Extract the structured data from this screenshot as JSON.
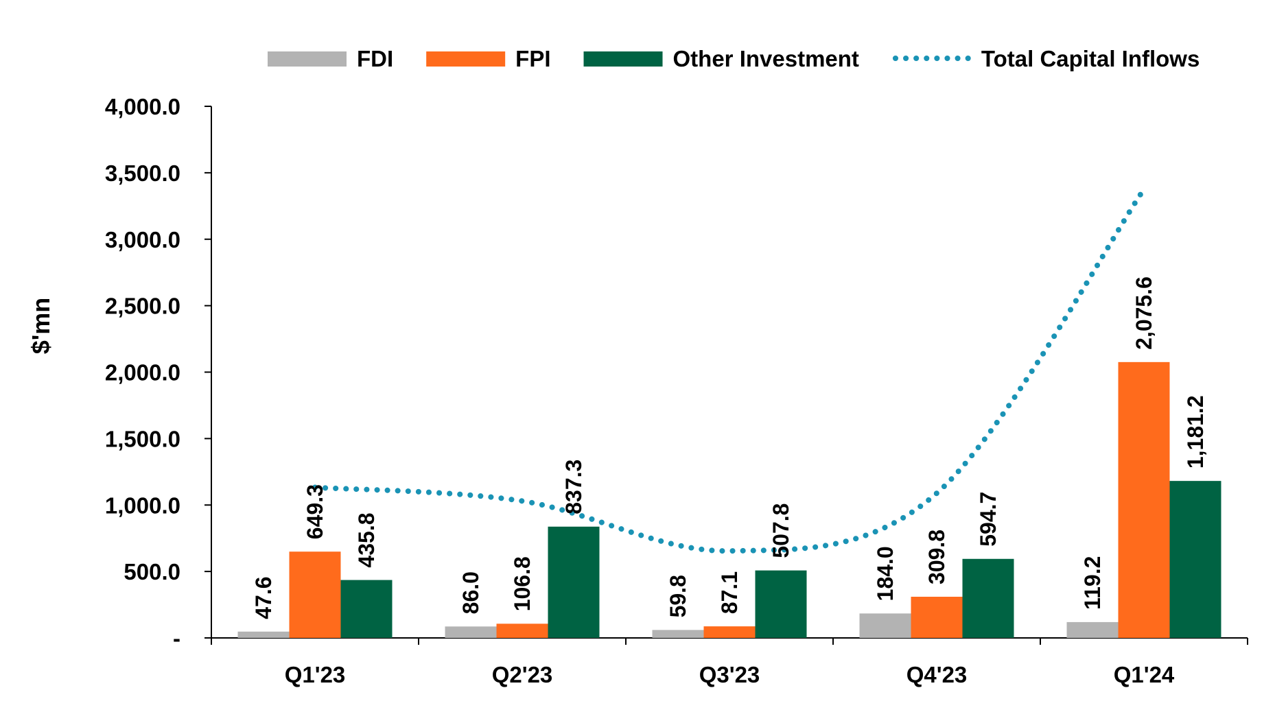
{
  "chart_data": {
    "type": "bar",
    "ylabel": "$'mn",
    "xlabel": "",
    "title": "",
    "categories": [
      "Q1'23",
      "Q2'23",
      "Q3'23",
      "Q4'23",
      "Q1'24"
    ],
    "series": [
      {
        "name": "FDI",
        "type": "bar",
        "color": "#b3b3b3",
        "values": [
          47.6,
          86.0,
          59.8,
          184.0,
          119.2
        ],
        "labels": [
          "47.6",
          "86.0",
          "59.8",
          "184.0",
          "119.2"
        ]
      },
      {
        "name": "FPI",
        "type": "bar",
        "color": "#ff6b1c",
        "values": [
          649.3,
          106.8,
          87.1,
          309.8,
          2075.6
        ],
        "labels": [
          "649.3",
          "106.8",
          "87.1",
          "309.8",
          "2,075.6"
        ]
      },
      {
        "name": "Other Investment",
        "type": "bar",
        "color": "#006343",
        "values": [
          435.8,
          837.3,
          507.8,
          594.7,
          1181.2
        ],
        "labels": [
          "435.8",
          "837.3",
          "507.8",
          "594.7",
          "1,181.2"
        ]
      },
      {
        "name": "Total Capital Inflows",
        "type": "line",
        "style": "dotted",
        "color": "#1a93b5",
        "values": [
          1132.7,
          1030.1,
          654.7,
          1088.5,
          3376.0
        ]
      }
    ],
    "ylim": [
      0,
      4000
    ],
    "yticks": [
      0,
      500,
      1000,
      1500,
      2000,
      2500,
      3000,
      3500,
      4000
    ],
    "ytick_labels": [
      "-",
      "500.0",
      "1,000.0",
      "1,500.0",
      "2,000.0",
      "2,500.0",
      "3,000.0",
      "3,500.0",
      "4,000.0"
    ],
    "grid": false,
    "legend_position": "top"
  }
}
